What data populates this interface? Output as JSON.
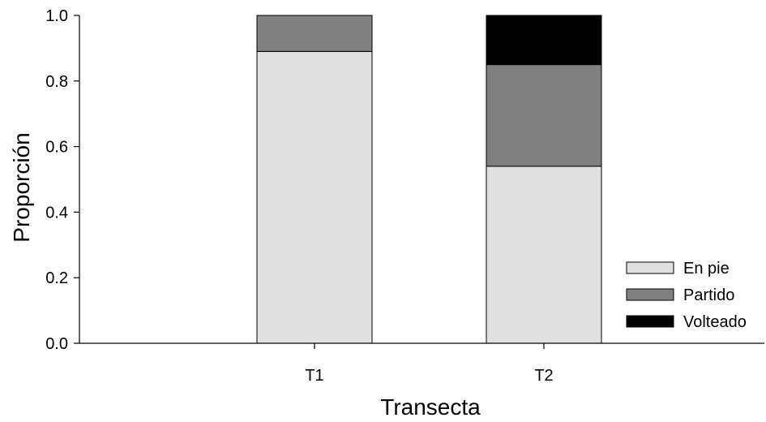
{
  "chart_data": {
    "type": "bar",
    "stacked": true,
    "title": "",
    "xlabel": "Transecta",
    "ylabel": "Proporción",
    "categories": [
      "T1",
      "T2"
    ],
    "series": [
      {
        "name": "En pie",
        "values": [
          0.89,
          0.54
        ],
        "color": "#e0e0e0"
      },
      {
        "name": "Partido",
        "values": [
          0.11,
          0.31
        ],
        "color": "#808080"
      },
      {
        "name": "Volteado",
        "values": [
          0.0,
          0.15
        ],
        "color": "#000000"
      }
    ],
    "ylim": [
      0,
      1.0
    ],
    "yticks": [
      "0.0",
      "0.2",
      "0.4",
      "0.6",
      "0.8",
      "1.0"
    ],
    "grid": false,
    "legend_position": "bottom-right"
  }
}
